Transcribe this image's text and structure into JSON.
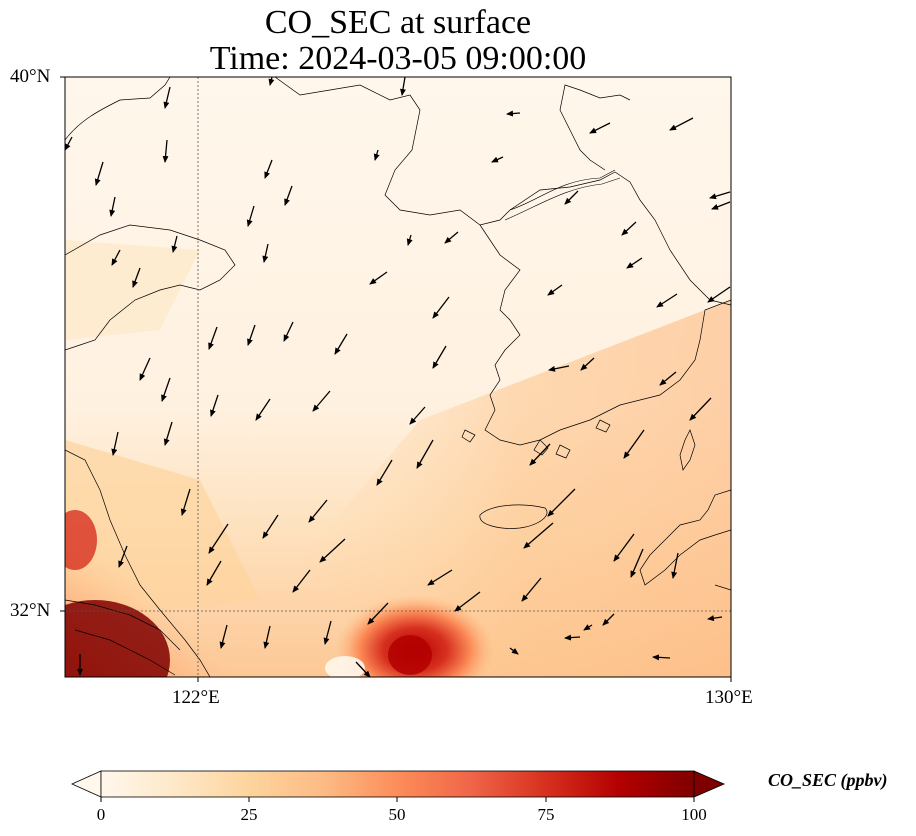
{
  "title_line1": "CO_SEC at surface",
  "title_line2": "Time: 2024-03-05 09:00:00",
  "axes": {
    "lat_ticks": [
      {
        "label": "40°N",
        "value": 40
      },
      {
        "label": "32°N",
        "value": 32
      }
    ],
    "lon_ticks": [
      {
        "label": "122°E",
        "value": 122
      },
      {
        "label": "130°E",
        "value": 130
      }
    ],
    "lon_range": [
      120,
      130
    ],
    "lat_range": [
      31,
      40
    ],
    "gridlines": "dotted"
  },
  "colorbar": {
    "label": "CO_SEC (ppbv)",
    "ticks": [
      "0",
      "25",
      "50",
      "75",
      "100"
    ],
    "range": [
      0,
      100
    ],
    "colormap": "OrRd",
    "extend": "both",
    "colors": [
      "#fff7ec",
      "#fee8c8",
      "#fdd49e",
      "#fdbb84",
      "#fc8d59",
      "#ef6548",
      "#d7301f",
      "#b30000",
      "#7f0000"
    ]
  },
  "regions": {
    "high_concentration_southwest": "near 120-122°E, 31-33°N",
    "plume_center_south": "near 124.5°E, 31.5°N"
  }
}
